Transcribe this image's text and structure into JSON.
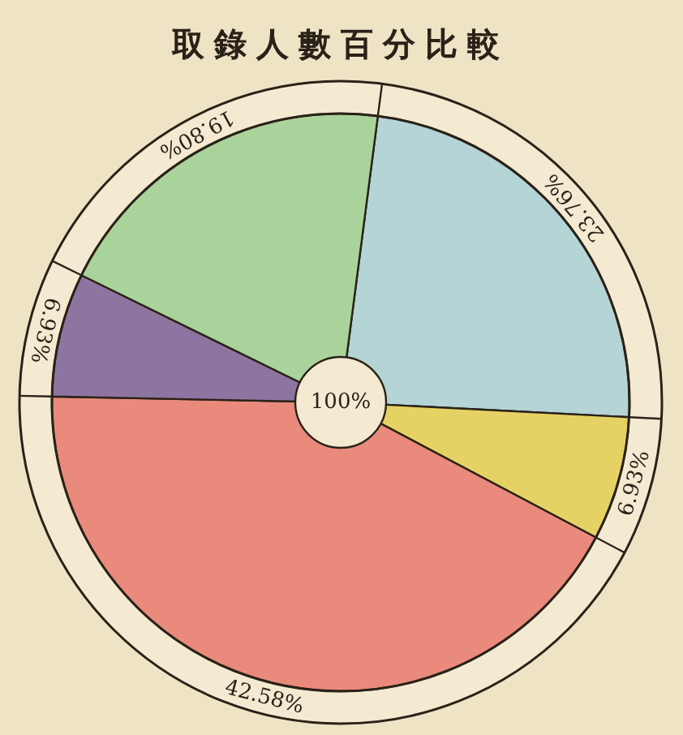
{
  "chart_data": {
    "type": "pie",
    "title": "取錄人數百分比較",
    "categories": [
      null,
      null,
      null,
      null,
      null
    ],
    "values": [
      23.76,
      6.93,
      42.58,
      6.93,
      19.8
    ],
    "value_labels": [
      "23.76%",
      "6.93%",
      "42.58%",
      "6.93%",
      "19.80%"
    ],
    "colors": [
      "#b4d4d6",
      "#e6d264",
      "#e98a7c",
      "#8e74a0",
      "#a9d39a"
    ],
    "annotations": [
      "100%"
    ]
  }
}
